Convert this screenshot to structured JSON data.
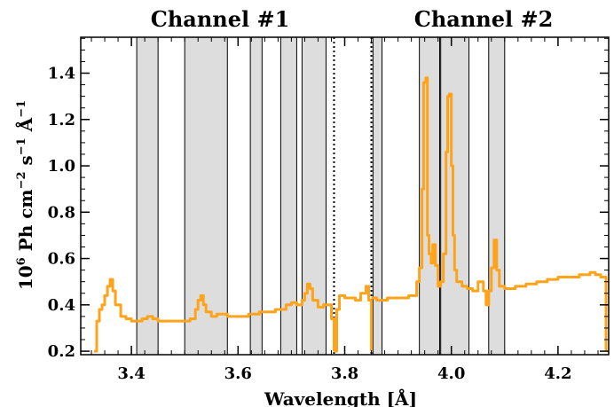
{
  "chart_data": {
    "type": "line",
    "title": "",
    "annotations": [
      "Channel #1",
      "Channel #2"
    ],
    "xlabel": "Wavelength [Å]",
    "ylabel": {
      "base": "10",
      "exp": "6",
      "unit1": " Ph cm",
      "exp2": "−2",
      "unit2": " s",
      "exp3": "−1",
      "unit3": " Å",
      "exp4": "−1"
    },
    "xlim": [
      3.305,
      4.295
    ],
    "ylim": [
      0.185,
      1.555
    ],
    "x_ticks": [
      3.4,
      3.6,
      3.8,
      4.0,
      4.2
    ],
    "x_tick_labels": [
      "3.4",
      "3.6",
      "3.8",
      "4.0",
      "4.2"
    ],
    "y_ticks": [
      0.2,
      0.4,
      0.6,
      0.8,
      1.0,
      1.2,
      1.4
    ],
    "y_tick_labels": [
      "0.2",
      "0.4",
      "0.6",
      "0.8",
      "1.0",
      "1.2",
      "1.4"
    ],
    "grid": false,
    "shaded_bands": [
      [
        3.41,
        3.45
      ],
      [
        3.5,
        3.58
      ],
      [
        3.623,
        3.645
      ],
      [
        3.68,
        3.71
      ],
      [
        3.72,
        3.765
      ],
      [
        3.853,
        3.87
      ],
      [
        3.94,
        3.978
      ],
      [
        3.98,
        4.033
      ],
      [
        4.07,
        4.1
      ]
    ],
    "channel_boundaries": [
      3.78,
      3.85
    ],
    "series": [
      {
        "color": "#ffa31a",
        "x": [
          3.33,
          3.335,
          3.34,
          3.345,
          3.35,
          3.355,
          3.36,
          3.365,
          3.37,
          3.38,
          3.39,
          3.4,
          3.41,
          3.42,
          3.43,
          3.44,
          3.45,
          3.46,
          3.48,
          3.5,
          3.51,
          3.52,
          3.525,
          3.53,
          3.535,
          3.54,
          3.55,
          3.56,
          3.57,
          3.58,
          3.6,
          3.62,
          3.64,
          3.66,
          3.67,
          3.68,
          3.69,
          3.7,
          3.71,
          3.72,
          3.725,
          3.73,
          3.735,
          3.74,
          3.75,
          3.76,
          3.765,
          3.775,
          3.78
        ],
        "y": [
          0.2,
          0.33,
          0.38,
          0.4,
          0.44,
          0.48,
          0.51,
          0.46,
          0.4,
          0.35,
          0.34,
          0.33,
          0.33,
          0.34,
          0.35,
          0.34,
          0.33,
          0.33,
          0.33,
          0.33,
          0.34,
          0.38,
          0.42,
          0.44,
          0.4,
          0.37,
          0.35,
          0.36,
          0.36,
          0.35,
          0.35,
          0.36,
          0.37,
          0.37,
          0.38,
          0.38,
          0.4,
          0.41,
          0.4,
          0.42,
          0.45,
          0.49,
          0.47,
          0.42,
          0.39,
          0.4,
          0.4,
          0.34,
          0.2
        ]
      },
      {
        "color": "#ffa31a",
        "x": [
          3.78,
          3.785,
          3.79,
          3.8,
          3.81,
          3.82,
          3.83,
          3.84,
          3.845,
          3.85
        ],
        "y": [
          0.2,
          0.38,
          0.44,
          0.43,
          0.43,
          0.42,
          0.45,
          0.48,
          0.42,
          0.2
        ]
      },
      {
        "color": "#ffa31a",
        "x": [
          3.85,
          3.86,
          3.88,
          3.9,
          3.92,
          3.935,
          3.94,
          3.945,
          3.948,
          3.952,
          3.955,
          3.958,
          3.962,
          3.965,
          3.97,
          3.975,
          3.98,
          3.985,
          3.99,
          3.993,
          3.996,
          4.0,
          4.003,
          4.006,
          4.01,
          4.02,
          4.03,
          4.04,
          4.05,
          4.06,
          4.065,
          4.07,
          4.075,
          4.08,
          4.085,
          4.09,
          4.1,
          4.12,
          4.14,
          4.16,
          4.18,
          4.2,
          4.22,
          4.24,
          4.26,
          4.27,
          4.28,
          4.285,
          4.29
        ],
        "y": [
          0.43,
          0.42,
          0.43,
          0.43,
          0.44,
          0.5,
          0.56,
          0.9,
          1.36,
          1.38,
          0.7,
          0.62,
          0.58,
          0.66,
          0.57,
          0.48,
          0.5,
          0.62,
          1.06,
          1.3,
          1.31,
          1.0,
          0.7,
          0.55,
          0.5,
          0.48,
          0.47,
          0.46,
          0.5,
          0.46,
          0.4,
          0.46,
          0.56,
          0.68,
          0.55,
          0.48,
          0.47,
          0.48,
          0.49,
          0.5,
          0.51,
          0.52,
          0.52,
          0.53,
          0.54,
          0.53,
          0.52,
          0.52,
          0.2
        ]
      }
    ]
  }
}
